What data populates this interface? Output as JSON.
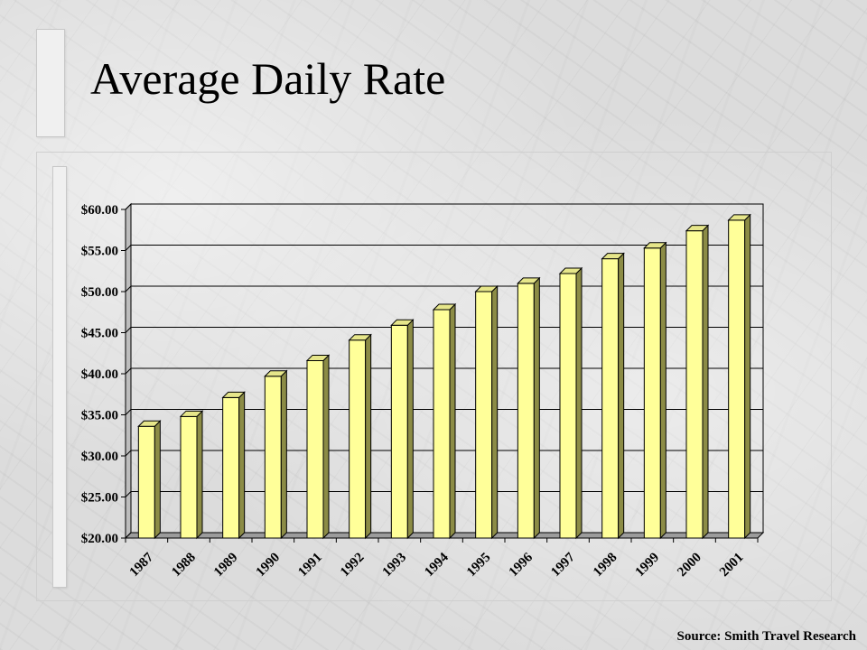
{
  "slide": {
    "title": "Average Daily Rate",
    "source": "Source: Smith Travel Research"
  },
  "chart_data": {
    "type": "bar",
    "title": "",
    "xlabel": "",
    "ylabel": "",
    "categories": [
      "1987",
      "1988",
      "1989",
      "1990",
      "1991",
      "1992",
      "1993",
      "1994",
      "1995",
      "1996",
      "1997",
      "1998",
      "1999",
      "2000",
      "2001"
    ],
    "values": [
      33.6,
      34.8,
      37.1,
      39.7,
      41.6,
      44.1,
      45.9,
      47.8,
      50.0,
      51.0,
      52.2,
      54.0,
      55.3,
      57.4,
      58.7
    ],
    "ylim": [
      20,
      60
    ],
    "yticks": [
      "$20.00",
      "$25.00",
      "$30.00",
      "$35.00",
      "$40.00",
      "$45.00",
      "$50.00",
      "$55.00",
      "$60.00"
    ],
    "grid": true,
    "legend": "none",
    "bar_color": "#ffff99",
    "bar_side_color": "#8c8c46",
    "bar_top_color": "#e6e68a"
  }
}
